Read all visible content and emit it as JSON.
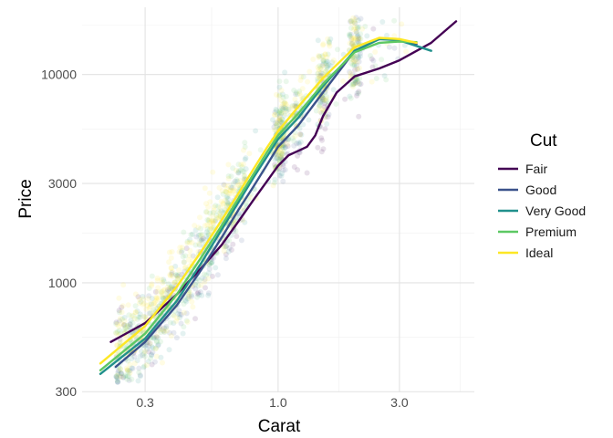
{
  "chart_data": {
    "type": "scatter",
    "title": "",
    "xlabel": "Carat",
    "ylabel": "Price",
    "x_scale": "log10",
    "y_scale": "log10",
    "xlim": [
      0.2,
      5.01
    ],
    "ylim": [
      326,
      18823
    ],
    "x_ticks": [
      0.3,
      1.0,
      3.0
    ],
    "x_tick_labels": [
      "0.3",
      "1.0",
      "3.0"
    ],
    "y_ticks": [
      300,
      1000,
      3000,
      10000
    ],
    "y_tick_labels": [
      "300",
      "1000",
      "3000",
      "10000"
    ],
    "grid": true,
    "legend": {
      "title": "Cut",
      "position": "right"
    },
    "points_description_scale": "approx. 54000 diamonds, points drawn semi-transparent",
    "series": [
      {
        "name": "Fair",
        "color": "#440154",
        "smooth": [
          [
            0.22,
            520
          ],
          [
            0.3,
            640
          ],
          [
            0.4,
            880
          ],
          [
            0.5,
            1180
          ],
          [
            0.6,
            1520
          ],
          [
            0.7,
            1980
          ],
          [
            0.8,
            2500
          ],
          [
            0.9,
            3050
          ],
          [
            1.0,
            3650
          ],
          [
            1.1,
            4100
          ],
          [
            1.2,
            4300
          ],
          [
            1.3,
            4500
          ],
          [
            1.4,
            5100
          ],
          [
            1.5,
            6300
          ],
          [
            1.7,
            8200
          ],
          [
            2.0,
            9800
          ],
          [
            2.5,
            10700
          ],
          [
            3.0,
            11700
          ],
          [
            4.0,
            14200
          ],
          [
            5.01,
            18000
          ]
        ]
      },
      {
        "name": "Good",
        "color": "#3B528B",
        "smooth": [
          [
            0.23,
            395
          ],
          [
            0.3,
            520
          ],
          [
            0.4,
            780
          ],
          [
            0.5,
            1160
          ],
          [
            0.6,
            1650
          ],
          [
            0.7,
            2250
          ],
          [
            0.8,
            2900
          ],
          [
            0.9,
            3650
          ],
          [
            1.0,
            4500
          ],
          [
            1.2,
            5700
          ],
          [
            1.5,
            8200
          ],
          [
            2.0,
            13000
          ],
          [
            2.5,
            14800
          ],
          [
            3.0,
            14700
          ],
          [
            3.5,
            14000
          ]
        ]
      },
      {
        "name": "Very Good",
        "color": "#21908C",
        "smooth": [
          [
            0.2,
            365
          ],
          [
            0.3,
            540
          ],
          [
            0.4,
            820
          ],
          [
            0.5,
            1250
          ],
          [
            0.6,
            1800
          ],
          [
            0.7,
            2450
          ],
          [
            0.8,
            3200
          ],
          [
            0.9,
            4000
          ],
          [
            1.0,
            4900
          ],
          [
            1.2,
            6200
          ],
          [
            1.5,
            8800
          ],
          [
            2.0,
            13000
          ],
          [
            2.5,
            14800
          ],
          [
            3.0,
            14600
          ],
          [
            4.0,
            13000
          ]
        ]
      },
      {
        "name": "Premium",
        "color": "#5DC863",
        "smooth": [
          [
            0.2,
            380
          ],
          [
            0.3,
            570
          ],
          [
            0.4,
            880
          ],
          [
            0.5,
            1330
          ],
          [
            0.6,
            1880
          ],
          [
            0.7,
            2550
          ],
          [
            0.8,
            3330
          ],
          [
            0.9,
            4200
          ],
          [
            1.0,
            5100
          ],
          [
            1.2,
            6500
          ],
          [
            1.5,
            9000
          ],
          [
            2.0,
            12800
          ],
          [
            2.5,
            14200
          ],
          [
            3.0,
            14400
          ],
          [
            3.5,
            14300
          ]
        ]
      },
      {
        "name": "Ideal",
        "color": "#FDE725",
        "smooth": [
          [
            0.2,
            410
          ],
          [
            0.3,
            620
          ],
          [
            0.4,
            960
          ],
          [
            0.5,
            1420
          ],
          [
            0.6,
            2000
          ],
          [
            0.7,
            2700
          ],
          [
            0.8,
            3520
          ],
          [
            0.9,
            4420
          ],
          [
            1.0,
            5350
          ],
          [
            1.2,
            7000
          ],
          [
            1.5,
            9600
          ],
          [
            2.0,
            13500
          ],
          [
            2.5,
            15000
          ],
          [
            3.0,
            14800
          ],
          [
            3.5,
            14200
          ]
        ]
      }
    ]
  }
}
